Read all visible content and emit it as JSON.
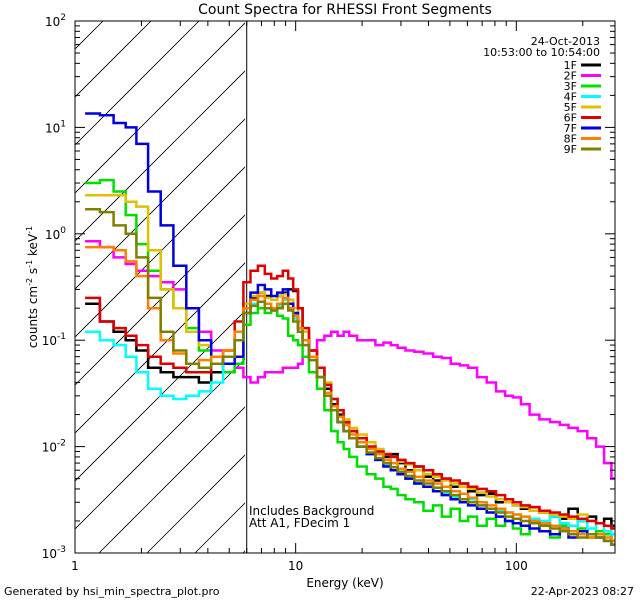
{
  "chart_data": {
    "type": "line",
    "title": "Count Spectra for RHESSI Front Segments",
    "xlabel": "Energy (keV)",
    "ylabel": "counts cm⁻² s⁻¹ keV⁻¹",
    "ylabel_parts": {
      "base": "counts cm",
      "e1": "-2",
      "mid1": " s",
      "e2": "-1",
      "mid2": " keV",
      "e3": "-1"
    },
    "x_scale": "log",
    "y_scale": "log",
    "xlim": [
      1,
      280
    ],
    "ylim": [
      0.001,
      100
    ],
    "x_ticks": [
      {
        "value": 1,
        "label": "1"
      },
      {
        "value": 10,
        "label": "10"
      },
      {
        "value": 100,
        "label": "100"
      }
    ],
    "y_ticks": [
      {
        "value": 0.001,
        "base": "10",
        "exp": "-3"
      },
      {
        "value": 0.01,
        "base": "10",
        "exp": "-2"
      },
      {
        "value": 0.1,
        "base": "10",
        "exp": "-1"
      },
      {
        "value": 1,
        "base": "10",
        "exp": "0"
      },
      {
        "value": 10,
        "base": "10",
        "exp": "1"
      },
      {
        "value": 100,
        "base": "10",
        "exp": "2"
      }
    ],
    "date": "24-Oct-2013",
    "time_range": "10:53:00 to 10:54:00",
    "excluded_region": {
      "from": 1,
      "to": 6
    },
    "annotations": [
      "Includes Background",
      "Att A1, FDecim 1"
    ],
    "footer_left": "Generated by hsi_min_spectra_plot.pro",
    "footer_right": "22-Apr-2023 08:27",
    "energy_bins": [
      1.2,
      1.4,
      1.6,
      1.8,
      2.0,
      2.3,
      2.6,
      3.0,
      3.4,
      3.9,
      4.4,
      5.0,
      5.6,
      6.0,
      6.5,
      7.0,
      7.5,
      8.0,
      8.5,
      9.0,
      9.5,
      10.0,
      10.5,
      11.0,
      12,
      13,
      14,
      15,
      16,
      17,
      18,
      20,
      22,
      24,
      26,
      28,
      30,
      33,
      36,
      40,
      44,
      48,
      53,
      58,
      63,
      70,
      77,
      85,
      93,
      100,
      110,
      120,
      135,
      150,
      165,
      180,
      200,
      220,
      240,
      260,
      280
    ],
    "series": [
      {
        "name": "1F",
        "color": "#000000",
        "values": [
          0.22,
          0.15,
          0.12,
          0.1,
          0.08,
          0.055,
          0.05,
          0.045,
          0.045,
          0.04,
          0.05,
          0.07,
          0.1,
          0.2,
          0.25,
          0.28,
          0.26,
          0.24,
          0.26,
          0.28,
          0.3,
          0.29,
          0.2,
          0.12,
          0.08,
          0.055,
          0.035,
          0.025,
          0.02,
          0.016,
          0.014,
          0.012,
          0.01,
          0.009,
          0.008,
          0.0085,
          0.007,
          0.006,
          0.0065,
          0.0052,
          0.0048,
          0.005,
          0.0042,
          0.0045,
          0.0038,
          0.0035,
          0.0036,
          0.003,
          0.0032,
          0.0028,
          0.0026,
          0.0027,
          0.0024,
          0.0022,
          0.0021,
          0.0026,
          0.002,
          0.0022,
          0.0019,
          0.0021,
          0.0018
        ]
      },
      {
        "name": "2F",
        "color": "#ff00ff",
        "values": [
          0.85,
          0.75,
          0.6,
          0.52,
          0.45,
          0.4,
          0.35,
          0.3,
          0.2,
          0.12,
          0.08,
          0.06,
          0.055,
          0.045,
          0.04,
          0.045,
          0.05,
          0.05,
          0.05,
          0.055,
          0.055,
          0.055,
          0.06,
          0.07,
          0.08,
          0.1,
          0.11,
          0.12,
          0.11,
          0.12,
          0.11,
          0.1,
          0.1,
          0.09,
          0.095,
          0.09,
          0.085,
          0.08,
          0.078,
          0.075,
          0.07,
          0.068,
          0.06,
          0.058,
          0.055,
          0.045,
          0.04,
          0.033,
          0.03,
          0.029,
          0.025,
          0.02,
          0.018,
          0.017,
          0.016,
          0.015,
          0.014,
          0.012,
          0.01,
          0.007,
          0.005
        ]
      },
      {
        "name": "3F",
        "color": "#00e000",
        "values": [
          3.0,
          3.2,
          2.5,
          1.5,
          0.8,
          0.45,
          0.3,
          0.2,
          0.13,
          0.08,
          0.06,
          0.05,
          0.06,
          0.14,
          0.18,
          0.2,
          0.18,
          0.19,
          0.17,
          0.16,
          0.11,
          0.1,
          0.09,
          0.07,
          0.05,
          0.035,
          0.022,
          0.014,
          0.011,
          0.0095,
          0.008,
          0.0065,
          0.0055,
          0.005,
          0.0042,
          0.004,
          0.0035,
          0.0032,
          0.003,
          0.0025,
          0.0028,
          0.0022,
          0.0026,
          0.002,
          0.0022,
          0.0018,
          0.0021,
          0.0018,
          0.002,
          0.0017,
          0.0015,
          0.0019,
          0.0016,
          0.0014,
          0.0018,
          0.0015,
          0.0017,
          0.0014,
          0.0016,
          0.0015,
          0.0013
        ]
      },
      {
        "name": "4F",
        "color": "#00ffff",
        "values": [
          0.12,
          0.1,
          0.09,
          0.07,
          0.05,
          0.035,
          0.03,
          0.028,
          0.03,
          0.033,
          0.04,
          0.06,
          0.1,
          0.2,
          0.22,
          0.23,
          0.2,
          0.19,
          0.21,
          0.24,
          0.2,
          0.16,
          0.12,
          0.09,
          0.065,
          0.045,
          0.03,
          0.022,
          0.017,
          0.014,
          0.012,
          0.01,
          0.0085,
          0.0075,
          0.0068,
          0.006,
          0.0055,
          0.005,
          0.0045,
          0.0042,
          0.0038,
          0.0036,
          0.0033,
          0.003,
          0.0032,
          0.0028,
          0.0026,
          0.0025,
          0.0024,
          0.0023,
          0.0022,
          0.0021,
          0.002,
          0.0022,
          0.0019,
          0.0018,
          0.002,
          0.0017,
          0.0019,
          0.0016,
          0.0015
        ]
      },
      {
        "name": "5F",
        "color": "#e0c000",
        "values": [
          2.3,
          2.3,
          2.3,
          2.0,
          1.8,
          0.7,
          0.3,
          0.2,
          0.12,
          0.09,
          0.07,
          0.08,
          0.12,
          0.22,
          0.26,
          0.28,
          0.25,
          0.24,
          0.26,
          0.27,
          0.24,
          0.2,
          0.15,
          0.12,
          0.08,
          0.055,
          0.04,
          0.028,
          0.022,
          0.018,
          0.015,
          0.013,
          0.011,
          0.0095,
          0.0085,
          0.008,
          0.0072,
          0.0068,
          0.006,
          0.0055,
          0.0052,
          0.0048,
          0.0045,
          0.0042,
          0.004,
          0.0037,
          0.0034,
          0.0032,
          0.003,
          0.0028,
          0.0027,
          0.0025,
          0.0024,
          0.0023,
          0.0022,
          0.0021,
          0.0023,
          0.002,
          0.0019,
          0.0018,
          0.0017
        ]
      },
      {
        "name": "6F",
        "color": "#e00000",
        "values": [
          0.25,
          0.15,
          0.13,
          0.11,
          0.09,
          0.07,
          0.06,
          0.055,
          0.05,
          0.05,
          0.06,
          0.08,
          0.15,
          0.35,
          0.45,
          0.5,
          0.42,
          0.38,
          0.4,
          0.45,
          0.38,
          0.3,
          0.2,
          0.13,
          0.08,
          0.055,
          0.038,
          0.028,
          0.022,
          0.017,
          0.014,
          0.012,
          0.01,
          0.009,
          0.0085,
          0.008,
          0.0075,
          0.007,
          0.0065,
          0.006,
          0.0055,
          0.005,
          0.0048,
          0.0045,
          0.0042,
          0.004,
          0.0038,
          0.0035,
          0.0032,
          0.003,
          0.0028,
          0.0027,
          0.0025,
          0.0024,
          0.0023,
          0.0022,
          0.0021,
          0.002,
          0.0019,
          0.0018,
          0.0017
        ]
      },
      {
        "name": "7F",
        "color": "#0000e0",
        "values": [
          13.5,
          13.0,
          11.0,
          10.0,
          7.0,
          2.5,
          1.2,
          0.5,
          0.2,
          0.1,
          0.07,
          0.06,
          0.07,
          0.18,
          0.28,
          0.33,
          0.3,
          0.26,
          0.28,
          0.3,
          0.22,
          0.18,
          0.13,
          0.1,
          0.07,
          0.045,
          0.03,
          0.022,
          0.017,
          0.014,
          0.012,
          0.01,
          0.0085,
          0.0075,
          0.0065,
          0.006,
          0.0055,
          0.005,
          0.0045,
          0.0042,
          0.0038,
          0.0035,
          0.0032,
          0.003,
          0.0028,
          0.0026,
          0.0024,
          0.0022,
          0.002,
          0.0019,
          0.0018,
          0.0017,
          0.0016,
          0.0015,
          0.0017,
          0.0014,
          0.0016,
          0.0015,
          0.0014,
          0.0013,
          0.0012
        ]
      },
      {
        "name": "8F",
        "color": "#ff8000",
        "values": [
          0.75,
          0.75,
          0.7,
          0.55,
          0.4,
          0.2,
          0.1,
          0.075,
          0.06,
          0.065,
          0.07,
          0.08,
          0.12,
          0.2,
          0.24,
          0.26,
          0.22,
          0.2,
          0.22,
          0.25,
          0.2,
          0.17,
          0.13,
          0.1,
          0.07,
          0.045,
          0.032,
          0.024,
          0.019,
          0.016,
          0.013,
          0.011,
          0.0095,
          0.0085,
          0.0075,
          0.007,
          0.0062,
          0.0058,
          0.0052,
          0.0048,
          0.0045,
          0.0042,
          0.0038,
          0.0036,
          0.0033,
          0.003,
          0.0028,
          0.0026,
          0.0024,
          0.0023,
          0.0022,
          0.002,
          0.0019,
          0.0018,
          0.0017,
          0.0016,
          0.0015,
          0.0014,
          0.0015,
          0.0014,
          0.0013
        ]
      },
      {
        "name": "9F",
        "color": "#808000",
        "values": [
          1.7,
          1.6,
          1.2,
          1.0,
          0.6,
          0.25,
          0.12,
          0.08,
          0.06,
          0.055,
          0.06,
          0.07,
          0.1,
          0.18,
          0.21,
          0.23,
          0.2,
          0.19,
          0.2,
          0.22,
          0.19,
          0.15,
          0.12,
          0.09,
          0.065,
          0.045,
          0.03,
          0.022,
          0.017,
          0.014,
          0.012,
          0.01,
          0.0088,
          0.0078,
          0.007,
          0.0064,
          0.0058,
          0.0053,
          0.0048,
          0.0045,
          0.0041,
          0.0038,
          0.0035,
          0.0032,
          0.003,
          0.0028,
          0.0026,
          0.0024,
          0.0022,
          0.0021,
          0.002,
          0.0019,
          0.0018,
          0.0017,
          0.0016,
          0.0015,
          0.0014,
          0.0015,
          0.0014,
          0.0013,
          0.0012
        ]
      }
    ]
  }
}
